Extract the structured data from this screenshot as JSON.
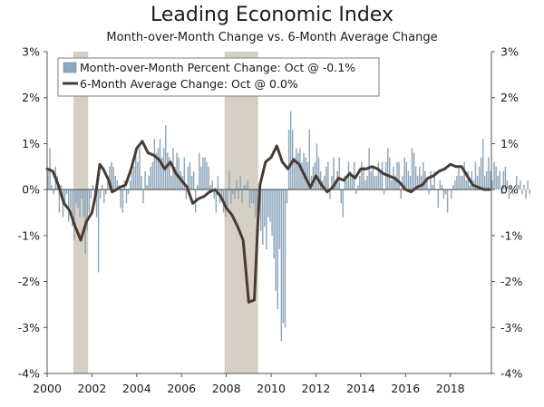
{
  "chart_data": {
    "type": "bar+line",
    "title": "Leading Economic Index",
    "subtitle": "Month-over-Month Change vs. 6-Month Average Change",
    "ylim": [
      -4,
      3
    ],
    "y_ticks": [
      "-4%",
      "-3%",
      "-2%",
      "-1%",
      "0%",
      "1%",
      "2%",
      "3%"
    ],
    "x_ticks": [
      "2000",
      "2002",
      "2004",
      "2006",
      "2008",
      "2010",
      "2012",
      "2014",
      "2016",
      "2018"
    ],
    "xlim": [
      2000,
      2019.8333
    ],
    "grid": false,
    "legend_placement": "top-left",
    "recessions": [
      [
        2001.17,
        2001.83
      ],
      [
        2007.92,
        2009.42
      ]
    ],
    "series": [
      {
        "name": "Month-over-Month Percent Change: Oct @ -0.1%",
        "type": "bar",
        "color": "#8ea8bd",
        "x_start": 2000.0,
        "x_step": 0.08333,
        "values": [
          0.4,
          0.9,
          0.1,
          -0.1,
          0.5,
          0.3,
          -0.5,
          0.1,
          -0.6,
          -0.3,
          -0.1,
          -0.7,
          -0.4,
          -0.8,
          -1.1,
          -0.3,
          -0.4,
          -0.6,
          -0.2,
          -0.6,
          -1.4,
          -0.9,
          -0.5,
          -0.2,
          0.1,
          -0.3,
          -0.6,
          -1.8,
          -0.2,
          0.1,
          -0.3,
          -0.1,
          0.3,
          0.5,
          0.6,
          0.5,
          0.3,
          0.2,
          0.1,
          -0.4,
          -0.5,
          0.2,
          -0.3,
          -0.1,
          0.2,
          0.4,
          0.5,
          0.8,
          0.6,
          0.9,
          0.3,
          -0.3,
          0.4,
          0.1,
          0.3,
          0.5,
          0.6,
          1.1,
          0.8,
          0.9,
          1.1,
          0.7,
          0.9,
          1.4,
          0.8,
          0.7,
          0.3,
          0.9,
          0.5,
          0.8,
          0.7,
          0.4,
          0.3,
          0.7,
          -0.2,
          0.5,
          0.6,
          0.3,
          0.4,
          -0.5,
          0.1,
          0.8,
          0.5,
          0.7,
          0.7,
          0.6,
          0.5,
          0.1,
          0.2,
          -0.2,
          -0.5,
          0.3,
          -0.3,
          -0.2,
          -0.5,
          -0.6,
          -0.4,
          0.4,
          -0.3,
          -0.1,
          -0.2,
          0.2,
          -0.2,
          0.3,
          -0.3,
          0.1,
          0.1,
          0.2,
          -0.4,
          -0.3,
          -0.3,
          -0.6,
          -0.5,
          -0.6,
          -0.9,
          -1.2,
          -0.8,
          -1.3,
          -0.6,
          -0.7,
          -1.0,
          -1.5,
          -2.2,
          -2.6,
          -1.3,
          -3.3,
          -2.9,
          -3.0,
          -0.3,
          1.3,
          1.7,
          1.3,
          0.7,
          0.9,
          0.8,
          0.9,
          0.6,
          0.8,
          0.7,
          0.6,
          1.3,
          0.3,
          0.5,
          0.6,
          1.0,
          0.7,
          0.4,
          0.2,
          0.3,
          0.5,
          0.6,
          -0.2,
          0.3,
          0.7,
          0.2,
          0.4,
          0.7,
          -0.3,
          -0.6,
          0.3,
          0.2,
          0.6,
          0.4,
          0.3,
          0.6,
          -0.1,
          0.1,
          0.3,
          0.6,
          0.5,
          0.2,
          0.3,
          0.9,
          0.4,
          0.5,
          0.3,
          0.3,
          0.6,
          0.4,
          0.6,
          -0.1,
          0.6,
          0.9,
          0.7,
          0.2,
          0.5,
          0.3,
          0.6,
          0.6,
          -0.2,
          0.3,
          0.7,
          0.6,
          0.4,
          0.3,
          0.9,
          0.8,
          0.5,
          0.3,
          0.5,
          0.3,
          0.6,
          0.4,
          0.2,
          -0.1,
          0.4,
          0.1,
          0.4,
          0.0,
          -0.4,
          0.2,
          0.1,
          -0.2,
          -0.1,
          -0.5,
          0.0,
          -0.2,
          0.1,
          0.2,
          0.3,
          0.5,
          0.3,
          0.3,
          0.6,
          0.2,
          0.4,
          0.1,
          0.4,
          0.2,
          0.6,
          0.3,
          0.5,
          0.7,
          1.1,
          0.3,
          0.4,
          0.7,
          0.4,
          0.2,
          0.6,
          0.5,
          0.3,
          0.4,
          -0.1,
          0.4,
          0.5,
          0.2,
          -0.2,
          0.1,
          -0.1,
          0.0,
          0.3,
          0.1,
          0.2,
          -0.1,
          0.1,
          -0.2,
          0.2,
          -0.1
        ]
      },
      {
        "name": "6-Month Average Change: Oct @ 0.0%",
        "type": "line",
        "color": "#4a3b32",
        "points": [
          [
            2000.0,
            0.45
          ],
          [
            2000.25,
            0.4
          ],
          [
            2000.5,
            0.1
          ],
          [
            2000.75,
            -0.3
          ],
          [
            2001.0,
            -0.45
          ],
          [
            2001.25,
            -0.8
          ],
          [
            2001.5,
            -1.1
          ],
          [
            2001.75,
            -0.7
          ],
          [
            2002.0,
            -0.5
          ],
          [
            2002.17,
            -0.1
          ],
          [
            2002.35,
            0.55
          ],
          [
            2002.5,
            0.45
          ],
          [
            2002.75,
            0.2
          ],
          [
            2002.9,
            -0.05
          ],
          [
            2003.1,
            0.0
          ],
          [
            2003.25,
            0.05
          ],
          [
            2003.5,
            0.1
          ],
          [
            2003.75,
            0.45
          ],
          [
            2004.0,
            0.9
          ],
          [
            2004.25,
            1.05
          ],
          [
            2004.5,
            0.8
          ],
          [
            2004.75,
            0.75
          ],
          [
            2005.0,
            0.65
          ],
          [
            2005.25,
            0.45
          ],
          [
            2005.5,
            0.6
          ],
          [
            2005.75,
            0.35
          ],
          [
            2006.0,
            0.2
          ],
          [
            2006.25,
            0.05
          ],
          [
            2006.5,
            -0.3
          ],
          [
            2006.75,
            -0.2
          ],
          [
            2007.0,
            -0.15
          ],
          [
            2007.25,
            -0.05
          ],
          [
            2007.5,
            0.0
          ],
          [
            2007.75,
            -0.15
          ],
          [
            2008.0,
            -0.4
          ],
          [
            2008.25,
            -0.55
          ],
          [
            2008.5,
            -0.8
          ],
          [
            2008.75,
            -1.1
          ],
          [
            2009.0,
            -2.45
          ],
          [
            2009.25,
            -2.4
          ],
          [
            2009.4,
            -0.8
          ],
          [
            2009.5,
            0.1
          ],
          [
            2009.75,
            0.6
          ],
          [
            2010.0,
            0.7
          ],
          [
            2010.25,
            0.95
          ],
          [
            2010.5,
            0.6
          ],
          [
            2010.75,
            0.45
          ],
          [
            2011.0,
            0.65
          ],
          [
            2011.25,
            0.55
          ],
          [
            2011.5,
            0.3
          ],
          [
            2011.75,
            0.05
          ],
          [
            2012.0,
            0.3
          ],
          [
            2012.25,
            0.1
          ],
          [
            2012.5,
            -0.05
          ],
          [
            2012.75,
            0.05
          ],
          [
            2013.0,
            0.25
          ],
          [
            2013.25,
            0.2
          ],
          [
            2013.5,
            0.35
          ],
          [
            2013.75,
            0.25
          ],
          [
            2014.0,
            0.45
          ],
          [
            2014.25,
            0.45
          ],
          [
            2014.5,
            0.5
          ],
          [
            2014.75,
            0.45
          ],
          [
            2015.0,
            0.35
          ],
          [
            2015.25,
            0.3
          ],
          [
            2015.5,
            0.25
          ],
          [
            2015.75,
            0.15
          ],
          [
            2016.0,
            0.0
          ],
          [
            2016.25,
            -0.05
          ],
          [
            2016.5,
            0.05
          ],
          [
            2016.75,
            0.1
          ],
          [
            2017.0,
            0.25
          ],
          [
            2017.25,
            0.3
          ],
          [
            2017.5,
            0.4
          ],
          [
            2017.75,
            0.45
          ],
          [
            2018.0,
            0.55
          ],
          [
            2018.25,
            0.5
          ],
          [
            2018.5,
            0.5
          ],
          [
            2018.75,
            0.3
          ],
          [
            2019.0,
            0.1
          ],
          [
            2019.25,
            0.05
          ],
          [
            2019.5,
            0.0
          ],
          [
            2019.75,
            0.0
          ]
        ]
      }
    ]
  }
}
